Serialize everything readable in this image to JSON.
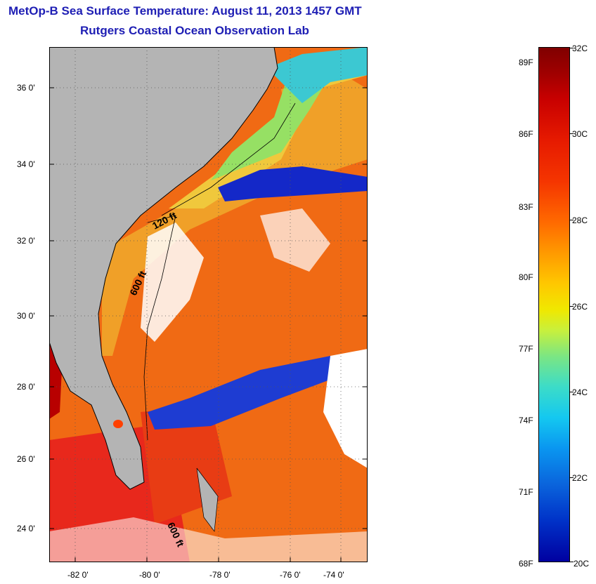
{
  "title": {
    "line1": "MetOp-B Sea Surface Temperature:  August 11, 2013 1457 GMT",
    "line2": "Rutgers Coastal Ocean Observation Lab"
  },
  "map": {
    "latitude_labels": [
      "36 0'",
      "34 0'",
      "32 0'",
      "30 0'",
      "28 0'",
      "26 0'",
      "24 0'"
    ],
    "longitude_labels": [
      "-82 0'",
      "-80 0'",
      "-78 0'",
      "-76 0'",
      "-74 0'"
    ],
    "contour_labels": [
      "120 ft",
      "600 ft",
      "600 ft"
    ],
    "colors": {
      "land": "#b4b4b4",
      "cloud": "#ffffff",
      "grid": "#555555"
    }
  },
  "colorbar": {
    "fahrenheit_labels": [
      "89F",
      "86F",
      "83F",
      "80F",
      "77F",
      "74F",
      "71F",
      "68F"
    ],
    "celsius_labels": [
      "32C",
      "30C",
      "28C",
      "26C",
      "24C",
      "22C",
      "20C"
    ]
  }
}
